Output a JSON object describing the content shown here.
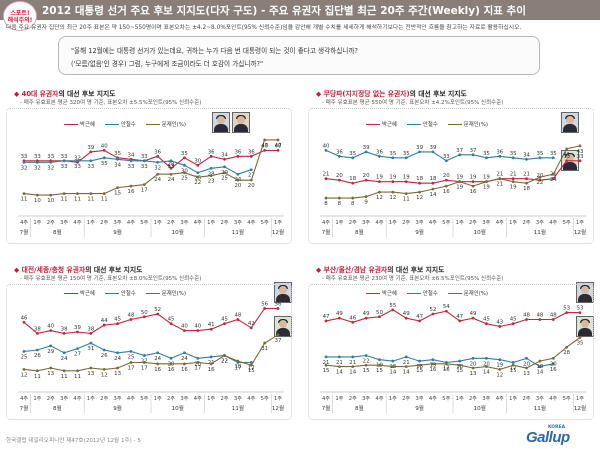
{
  "header": {
    "badge_line1": "스포트!",
    "badge_line2": "해석주의!",
    "title": "2012 대통령 선거 주요 후보 지지도(다자 구도) - 주요 유권자 집단별 최근 20주 주간(Weekly) 지표 추이"
  },
  "intro": {
    "line1": "다음 주요 유권자 집단의 최근 20주 표본은 약 150~550명이며 표본오차는 ±4.2~8.0%포인트(95% 신뢰수준)임을 감안해 개별 수치를 세세하게 해석하기보다는 전반적인 흐름을 참고하는 자료로 활용하십시오."
  },
  "question": {
    "line1": "\"올해 12월에는 대통령 선거가 있는데요, 귀하는 누가 다음 번 대통령이 되는 것이 좋다고 생각하십니까?",
    "line2": "('모름/없음'인 경우) 그럼, 누구에게 조금이라도 더 호감이 가십니까?\""
  },
  "legend": {
    "park": "박근혜",
    "ahn": "안철수",
    "moon": "문재인(%)"
  },
  "colors": {
    "park": "#c0283f",
    "ahn": "#2f7fa0",
    "moon": "#7a6a3a",
    "title_red": "#c41e3a"
  },
  "x_axis": {
    "weeks": [
      "4주",
      "1주",
      "2주",
      "3주",
      "4주",
      "1주",
      "2주",
      "3주",
      "4주",
      "5주",
      "1주",
      "2주",
      "3주",
      "4주",
      "1주",
      "2주",
      "3주",
      "4주",
      "5주",
      "1주"
    ],
    "months": [
      {
        "label": "7월",
        "start": 0,
        "end": 0
      },
      {
        "label": "8월",
        "start": 1,
        "end": 4
      },
      {
        "label": "9월",
        "start": 5,
        "end": 9
      },
      {
        "label": "10월",
        "start": 10,
        "end": 13
      },
      {
        "label": "11월",
        "start": 14,
        "end": 18
      },
      {
        "label": "12월",
        "start": 19,
        "end": 19
      }
    ]
  },
  "chart_data": [
    {
      "type": "line",
      "title_highlight": "40대 유권자",
      "title_rest": "의 대선 후보 지지도",
      "subtitle": "- 매주 유효표본 평균 320여 명 기준, 표본오차 ±5.5%포인트(95% 신뢰수준)",
      "categories": [
        "7월 4주",
        "8월 1주",
        "8월 2주",
        "8월 3주",
        "8월 4주",
        "9월 1주",
        "9월 2주",
        "9월 3주",
        "9월 4주",
        "9월 5주",
        "10월 1주",
        "10월 2주",
        "10월 3주",
        "10월 4주",
        "11월 1주",
        "11월 2주",
        "11월 3주",
        "11월 4주",
        "11월 5주",
        "12월 1주"
      ],
      "series": [
        {
          "name": "박근혜",
          "values": [
            33,
            33,
            33,
            33,
            32,
            39,
            40,
            35,
            34,
            33,
            36,
            28,
            35,
            30,
            36,
            34,
            36,
            36,
            40,
            40
          ]
        },
        {
          "name": "안철수",
          "values": [
            32,
            32,
            32,
            33,
            33,
            33,
            35,
            34,
            33,
            33,
            32,
            33,
            30,
            25,
            28,
            29,
            24,
            27,
            null,
            null
          ]
        },
        {
          "name": "문재인",
          "values": [
            11,
            10,
            10,
            11,
            11,
            11,
            11,
            15,
            16,
            17,
            24,
            24,
            25,
            22,
            23,
            25,
            20,
            20,
            47,
            47
          ]
        }
      ],
      "ylim": [
        0,
        55
      ]
    },
    {
      "type": "line",
      "title_highlight": "무당파(지지정당 없는 유권자)",
      "title_rest": "의 대선 후보 지지도",
      "subtitle": "- 매주 유효표본 평균 550여 명 기준, 표본오차 ±4.2%포인트(95% 신뢰수준)",
      "categories": [
        "7월 4주",
        "8월 1주",
        "8월 2주",
        "8월 3주",
        "8월 4주",
        "9월 1주",
        "9월 2주",
        "9월 3주",
        "9월 4주",
        "9월 5주",
        "10월 1주",
        "10월 2주",
        "10월 3주",
        "10월 4주",
        "11월 1주",
        "11월 2주",
        "11월 3주",
        "11월 4주",
        "11월 5주",
        "12월 1주"
      ],
      "series": [
        {
          "name": "박근혜",
          "values": [
            21,
            20,
            18,
            20,
            19,
            19,
            19,
            18,
            18,
            20,
            19,
            19,
            19,
            21,
            21,
            21,
            20,
            21,
            33,
            33
          ]
        },
        {
          "name": "안철수",
          "values": [
            40,
            36,
            35,
            39,
            36,
            35,
            35,
            39,
            39,
            33,
            37,
            37,
            35,
            36,
            35,
            34,
            35,
            35,
            null,
            null
          ]
        },
        {
          "name": "문재인",
          "values": [
            8,
            8,
            8,
            9,
            12,
            12,
            11,
            12,
            14,
            16,
            19,
            16,
            19,
            21,
            19,
            18,
            22,
            24,
            41,
            43
          ]
        }
      ],
      "ylim": [
        0,
        55
      ]
    },
    {
      "type": "line",
      "title_highlight": "대전/세종/충청 유권자",
      "title_rest": "의 대선 후보 지지도",
      "subtitle": "- 매주 유효표본 평균 150여 명 기준, 표본오차 ±8.0%포인트(95% 신뢰수준)",
      "categories": [
        "7월 4주",
        "8월 1주",
        "8월 2주",
        "8월 3주",
        "8월 4주",
        "9월 1주",
        "9월 2주",
        "9월 3주",
        "9월 4주",
        "9월 5주",
        "10월 1주",
        "10월 2주",
        "10월 3주",
        "10월 4주",
        "11월 1주",
        "11월 2주",
        "11월 3주",
        "11월 4주",
        "11월 5주",
        "12월 1주"
      ],
      "series": [
        {
          "name": "박근혜",
          "values": [
            46,
            38,
            40,
            38,
            39,
            38,
            44,
            45,
            48,
            50,
            52,
            45,
            40,
            40,
            41,
            45,
            48,
            42,
            56,
            56
          ]
        },
        {
          "name": "안철수",
          "values": [
            25,
            26,
            29,
            24,
            27,
            31,
            26,
            24,
            25,
            22,
            24,
            20,
            24,
            20,
            21,
            22,
            17,
            17,
            null,
            null
          ]
        },
        {
          "name": "문재인",
          "values": [
            12,
            11,
            13,
            11,
            11,
            13,
            12,
            13,
            17,
            17,
            16,
            16,
            16,
            17,
            16,
            22,
            18,
            15,
            31,
            37
          ]
        }
      ],
      "ylim": [
        0,
        65
      ]
    },
    {
      "type": "line",
      "title_highlight": "부산/울산/경남 유권자",
      "title_rest": "의 대선 후보 지지도",
      "subtitle": "- 매주 유효표본 평균 230여 명 기준, 표본오차 ±6.5%포인트(95% 신뢰수준)",
      "categories": [
        "7월 4주",
        "8월 1주",
        "8월 2주",
        "8월 3주",
        "8월 4주",
        "9월 1주",
        "9월 2주",
        "9월 3주",
        "9월 4주",
        "9월 5주",
        "10월 1주",
        "10월 2주",
        "10월 3주",
        "10월 4주",
        "11월 1주",
        "11월 2주",
        "11월 3주",
        "11월 4주",
        "11월 5주",
        "12월 1주"
      ],
      "series": [
        {
          "name": "박근혜",
          "values": [
            47,
            49,
            46,
            49,
            50,
            55,
            49,
            47,
            52,
            54,
            47,
            49,
            45,
            43,
            45,
            48,
            48,
            48,
            53,
            53
          ]
        },
        {
          "name": "안철수",
          "values": [
            21,
            21,
            21,
            22,
            19,
            18,
            21,
            18,
            19,
            17,
            18,
            20,
            20,
            19,
            17,
            20,
            14,
            16,
            null,
            null
          ]
        },
        {
          "name": "문재인",
          "values": [
            15,
            14,
            14,
            15,
            15,
            14,
            14,
            15,
            16,
            16,
            15,
            13,
            14,
            12,
            15,
            13,
            18,
            20,
            28,
            35
          ]
        }
      ],
      "ylim": [
        0,
        65
      ]
    }
  ],
  "footer": {
    "note": "한국갤럽 데일리오피니언 제47호(2012년 12월 1주) - 5",
    "brand": "Gallup",
    "brand_sub": "KOREA"
  }
}
